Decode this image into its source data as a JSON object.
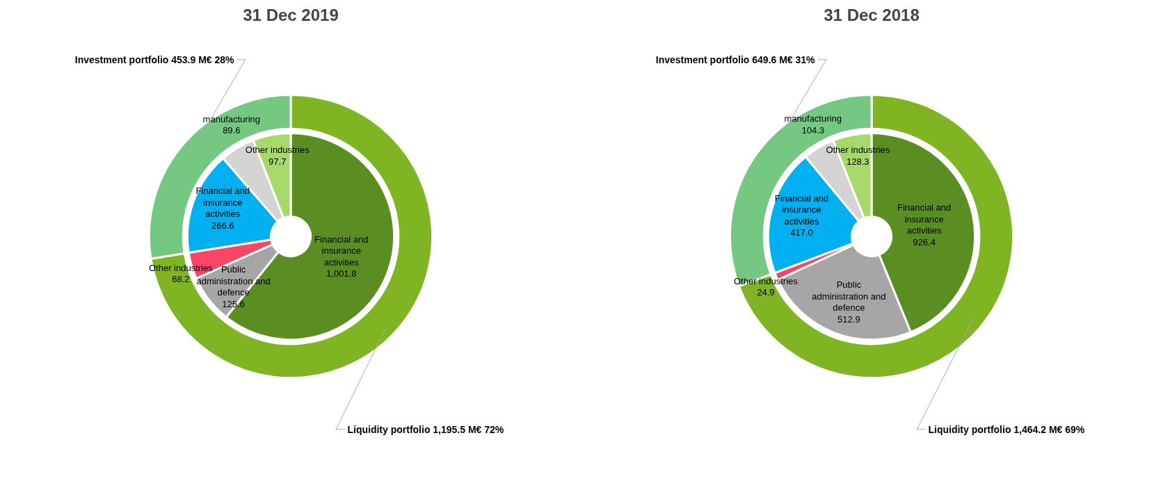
{
  "chart_data": [
    {
      "type": "donut",
      "title": "31 Dec 2019",
      "categories": [
        "Financial and insurance activities",
        "Public administration and defence",
        "Other industries",
        "Financial and insurance activities",
        "manufacturing",
        "Other industries",
        "Liquidity portfolio",
        "Investment portfolio"
      ],
      "colors": [
        "#5a8e22",
        "#a6a6a6",
        "#fa4566",
        "#00b0f0",
        "#d4d4d4",
        "#a6d96a",
        "#7fb522",
        "#74c882"
      ],
      "series": [
        {
          "values": [
            1001.8,
            125.6,
            68.2,
            266.6,
            89.6,
            97.7,
            null,
            null
          ],
          "value_labels": [
            "1,001.8",
            "125.6",
            "68.2",
            "266.6",
            "89.6",
            "97.7",
            null,
            null
          ]
        },
        {
          "values": [
            null,
            null,
            null,
            null,
            null,
            null,
            1195.5,
            453.9
          ],
          "value_labels": [
            null,
            null,
            null,
            null,
            null,
            null,
            "1,195.5 M€ 72%",
            "453.9 M€ 28%"
          ]
        }
      ]
    },
    {
      "type": "donut",
      "title": "31 Dec 2018",
      "categories": [
        "Financial and insurance activities",
        "Public administration and defence",
        "Other industries",
        "Financial and insurance activities",
        "manufacturing",
        "Other industries",
        "Liquidity portfolio",
        "Investment portfolio"
      ],
      "colors": [
        "#5a8e22",
        "#a6a6a6",
        "#fa4566",
        "#00b0f0",
        "#d4d4d4",
        "#a6d96a",
        "#7fb522",
        "#74c882"
      ],
      "series": [
        {
          "values": [
            926.4,
            512.9,
            24.9,
            417.0,
            104.3,
            128.3,
            null,
            null
          ],
          "value_labels": [
            "926.4",
            "512.9",
            "24.9",
            "417.0",
            "104.3",
            "128.3",
            null,
            null
          ]
        },
        {
          "values": [
            null,
            null,
            null,
            null,
            null,
            null,
            1464.2,
            649.6
          ],
          "value_labels": [
            null,
            null,
            null,
            null,
            null,
            null,
            "1,464.2 M€ 69%",
            "649.6 M€ 31%"
          ]
        }
      ]
    }
  ]
}
